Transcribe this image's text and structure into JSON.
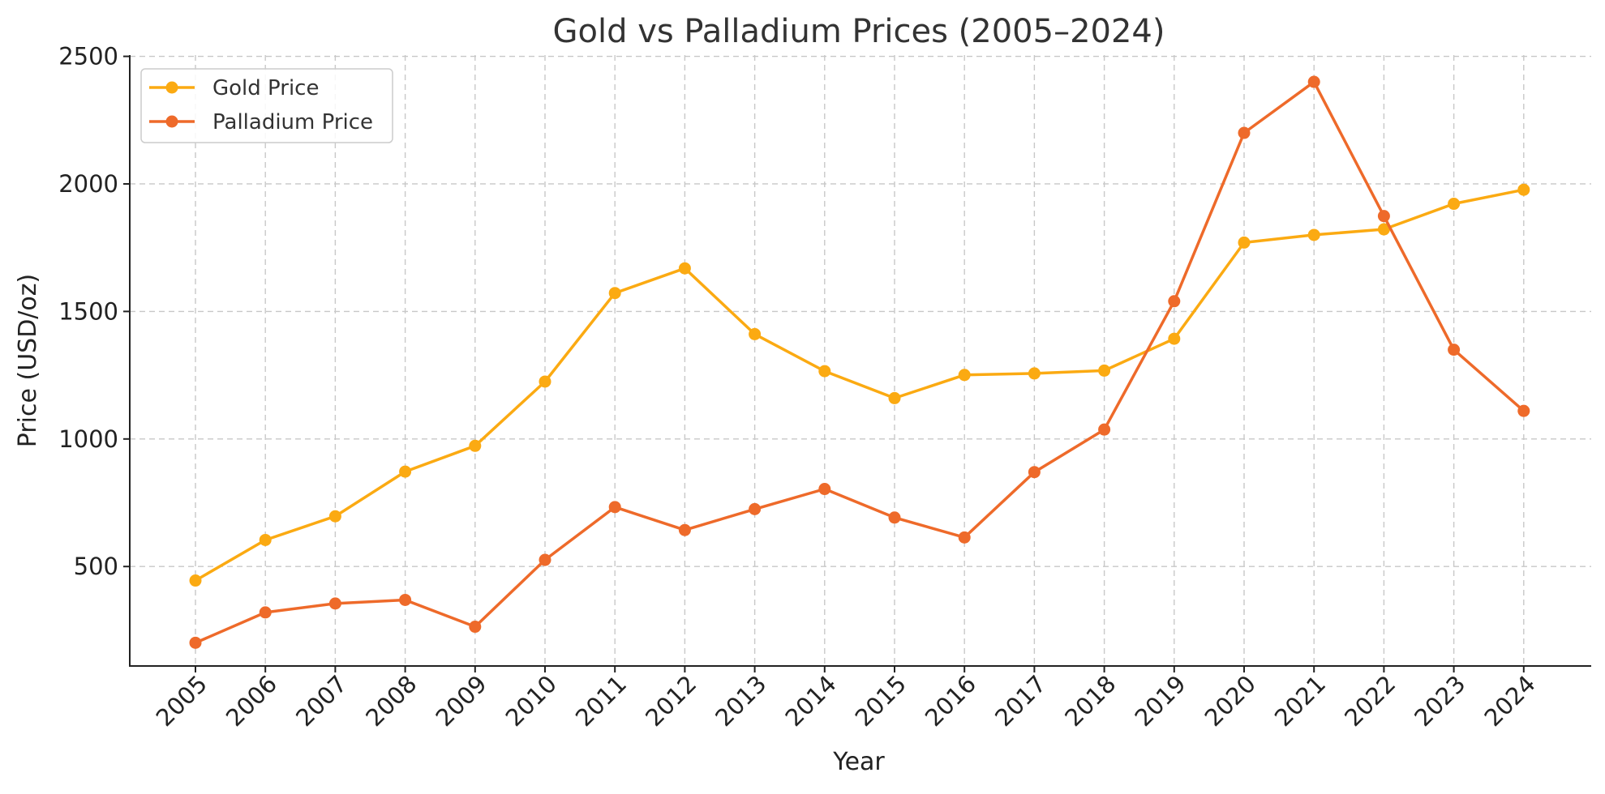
{
  "chart_data": {
    "type": "line",
    "title": "Gold vs Palladium Prices (2005–2024)",
    "xlabel": "Year",
    "ylabel": "Price (USD/oz)",
    "categories": [
      "2005",
      "2006",
      "2007",
      "2008",
      "2009",
      "2010",
      "2011",
      "2012",
      "2013",
      "2014",
      "2015",
      "2016",
      "2017",
      "2018",
      "2019",
      "2020",
      "2021",
      "2022",
      "2023",
      "2024"
    ],
    "ylim": [
      110,
      2505
    ],
    "yticks": [
      500,
      1000,
      1500,
      2000,
      2500
    ],
    "grid": true,
    "legend_position": "top-left",
    "series": [
      {
        "name": "Gold Price",
        "color": "#FBAA12",
        "values": [
          445,
          604,
          697,
          872,
          973,
          1225,
          1572,
          1669,
          1411,
          1266,
          1160,
          1251,
          1257,
          1268,
          1393,
          1770,
          1800,
          1822,
          1922,
          1977
        ]
      },
      {
        "name": "Palladium Price",
        "color": "#EE6A2A",
        "values": [
          201,
          320,
          355,
          369,
          264,
          526,
          733,
          643,
          725,
          804,
          692,
          614,
          870,
          1037,
          1540,
          2200,
          2400,
          1874,
          1350,
          1110
        ]
      }
    ]
  }
}
